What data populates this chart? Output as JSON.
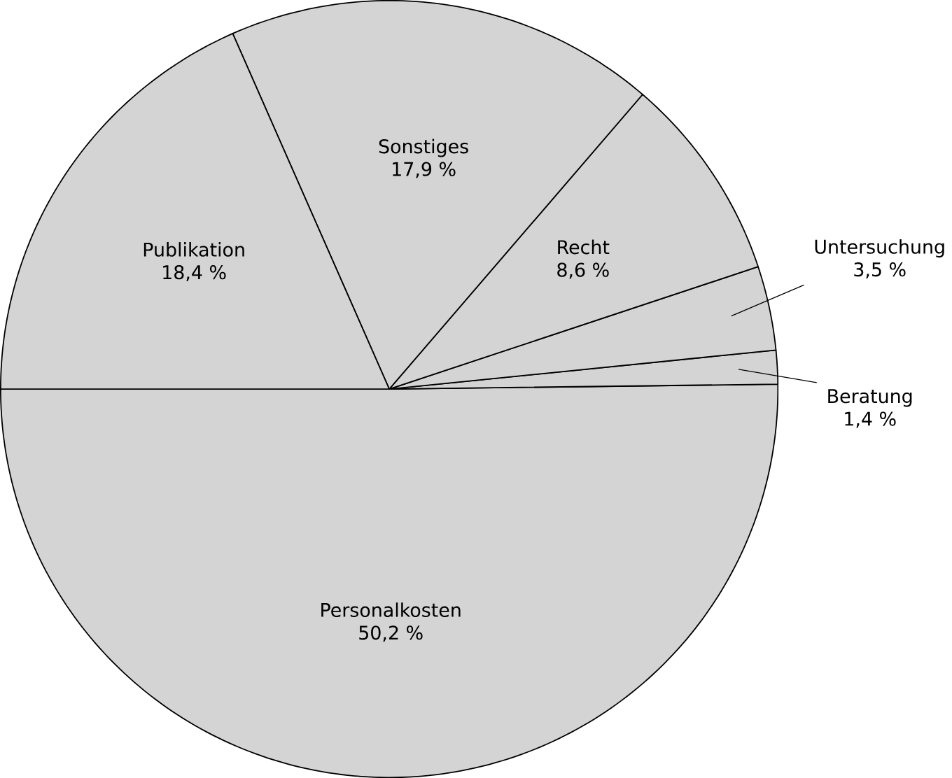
{
  "chart_data": {
    "type": "pie",
    "categories": [
      "Personalkosten",
      "Beratung",
      "Untersuchung",
      "Recht",
      "Sonstiges",
      "Publikation"
    ],
    "values": [
      50.2,
      1.4,
      3.5,
      8.6,
      17.9,
      18.4
    ],
    "value_labels": [
      "50,2 %",
      "1,4 %",
      "3,5 %",
      "8,6 %",
      "17,9 %",
      "18,4 %"
    ],
    "colors": [
      "#d4d4d4",
      "#d4d4d4",
      "#d4d4d4",
      "#d4d4d4",
      "#d4d4d4",
      "#d4d4d4"
    ]
  }
}
